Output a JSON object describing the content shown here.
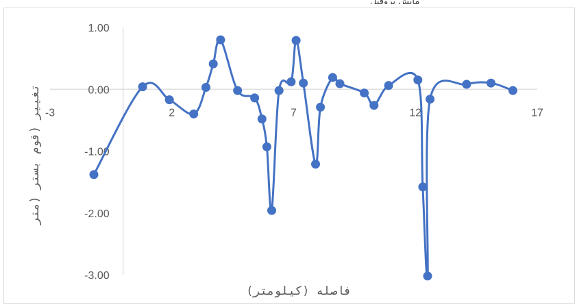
{
  "chart_data": {
    "type": "scatter",
    "ylabel": "تغییر (قوم بستر (متر",
    "xlabel": "فاصله (کیلومتر)",
    "x_ticks": [
      "-3",
      "2",
      "7",
      "12",
      "17"
    ],
    "y_ticks": [
      "1.00",
      "0.00",
      "-1.00",
      "-2.00",
      "-3.00"
    ],
    "xlim": [
      -3,
      17
    ],
    "ylim": [
      -3,
      1
    ],
    "grid": false,
    "smooth": true,
    "color": "#4472c4",
    "series": [
      {
        "points": [
          [
            -1.2,
            -1.38
          ],
          [
            0.8,
            0.04
          ],
          [
            1.9,
            -0.17
          ],
          [
            2.9,
            -0.4
          ],
          [
            3.4,
            0.03
          ],
          [
            3.7,
            0.41
          ],
          [
            4.0,
            0.8
          ],
          [
            4.7,
            -0.02
          ],
          [
            5.4,
            -0.14
          ],
          [
            5.7,
            -0.48
          ],
          [
            5.9,
            -0.93
          ],
          [
            6.1,
            -1.96
          ],
          [
            6.4,
            -0.02
          ],
          [
            6.9,
            0.12
          ],
          [
            7.1,
            0.79
          ],
          [
            7.4,
            0.1
          ],
          [
            7.9,
            -1.21
          ],
          [
            8.1,
            -0.29
          ],
          [
            8.6,
            0.19
          ],
          [
            8.9,
            0.09
          ],
          [
            9.9,
            -0.06
          ],
          [
            10.3,
            -0.26
          ],
          [
            10.9,
            0.06
          ],
          [
            12.1,
            0.15
          ],
          [
            12.3,
            -1.58
          ],
          [
            12.5,
            -3.02
          ],
          [
            12.6,
            -0.16
          ],
          [
            14.1,
            0.08
          ],
          [
            15.1,
            0.1
          ],
          [
            16.0,
            -0.02
          ]
        ]
      }
    ]
  }
}
